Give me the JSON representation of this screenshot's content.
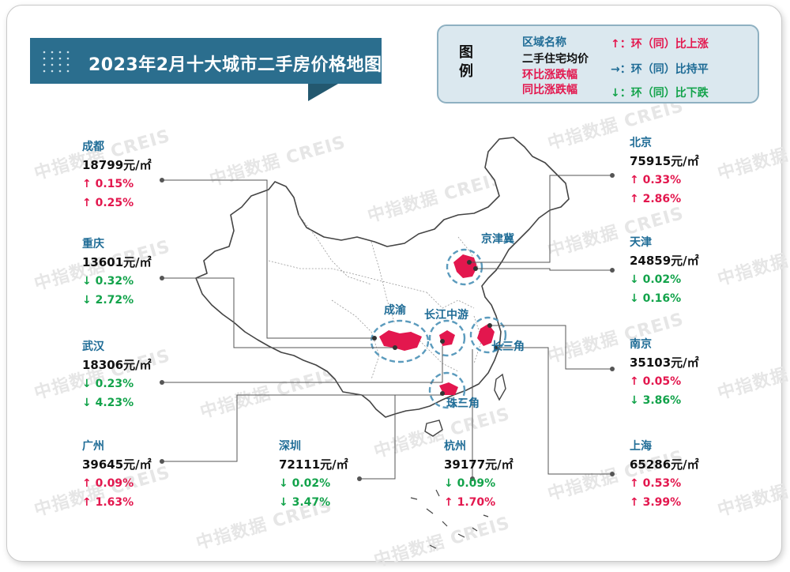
{
  "title": "2023年2月十大城市二手房价格地图",
  "legend": {
    "heading": "图例",
    "line1": "区域名称",
    "line2": "二手住宅均价",
    "line3": "环比涨跌幅",
    "line4": "同比涨跌幅",
    "up": "↑：环（同）比上涨",
    "flat": "→：环（同）比持平",
    "down": "↓：环（同）比下跌"
  },
  "watermark": "中指数据 CREIS",
  "regions": [
    "京津冀",
    "成渝",
    "长江中游",
    "长三角",
    "珠三角"
  ],
  "cities": [
    {
      "name": "成都",
      "price": "18799元/㎡",
      "mom": "↑ 0.15%",
      "yoy": "↑ 0.25%",
      "mom_dir": "up",
      "yoy_dir": "up"
    },
    {
      "name": "重庆",
      "price": "13601元/㎡",
      "mom": "↓ 0.32%",
      "yoy": "↓ 2.72%",
      "mom_dir": "down",
      "yoy_dir": "down"
    },
    {
      "name": "武汉",
      "price": "18306元/㎡",
      "mom": "↓ 0.23%",
      "yoy": "↓ 4.23%",
      "mom_dir": "down",
      "yoy_dir": "down"
    },
    {
      "name": "广州",
      "price": "39645元/㎡",
      "mom": "↑ 0.09%",
      "yoy": "↑ 1.63%",
      "mom_dir": "up",
      "yoy_dir": "up"
    },
    {
      "name": "深圳",
      "price": "72111元/㎡",
      "mom": "↓ 0.02%",
      "yoy": "↓ 3.47%",
      "mom_dir": "down",
      "yoy_dir": "down"
    },
    {
      "name": "杭州",
      "price": "39177元/㎡",
      "mom": "↓ 0.09%",
      "yoy": "↑ 1.70%",
      "mom_dir": "down",
      "yoy_dir": "up"
    },
    {
      "name": "北京",
      "price": "75915元/㎡",
      "mom": "↑ 0.33%",
      "yoy": "↑ 2.86%",
      "mom_dir": "up",
      "yoy_dir": "up"
    },
    {
      "name": "天津",
      "price": "24859元/㎡",
      "mom": "↓ 0.02%",
      "yoy": "↓ 0.16%",
      "mom_dir": "down",
      "yoy_dir": "down"
    },
    {
      "name": "南京",
      "price": "35103元/㎡",
      "mom": "↑ 0.05%",
      "yoy": "↓ 3.86%",
      "mom_dir": "up",
      "yoy_dir": "down"
    },
    {
      "name": "上海",
      "price": "65286元/㎡",
      "mom": "↑ 0.53%",
      "yoy": "↑ 3.99%",
      "mom_dir": "up",
      "yoy_dir": "up"
    }
  ],
  "colors": {
    "brand": "#2b6e8e",
    "up": "#e3174e",
    "down": "#13a34b",
    "label": "#1f6c96",
    "region_fill": "#e3174e",
    "circle": "#5b9bbd"
  }
}
